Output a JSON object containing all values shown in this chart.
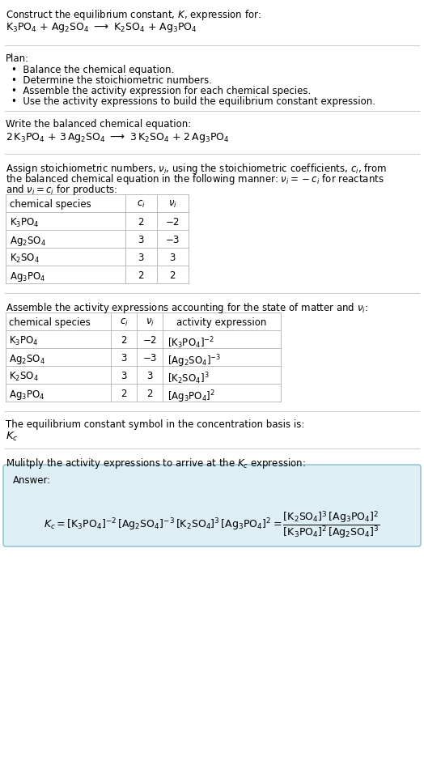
{
  "bg_color": "#ffffff",
  "text_color": "#000000",
  "table_border_color": "#bbbbbb",
  "answer_box_color": "#ddeef5",
  "answer_box_border": "#88bbcc",
  "fs": 8.5,
  "title_line1": "Construct the equilibrium constant, $K$, expression for:",
  "title_line2": "$\\mathrm{K_3PO_4}$ + $\\mathrm{Ag_2SO_4}$ $\\longrightarrow$ $\\mathrm{K_2SO_4}$ + $\\mathrm{Ag_3PO_4}$",
  "plan_header": "Plan:",
  "plan_bullets": [
    "Balance the chemical equation.",
    "Determine the stoichiometric numbers.",
    "Assemble the activity expression for each chemical species.",
    "Use the activity expressions to build the equilibrium constant expression."
  ],
  "balanced_eq_header": "Write the balanced chemical equation:",
  "balanced_eq": "$2\\,\\mathrm{K_3PO_4}$ + $3\\,\\mathrm{Ag_2SO_4}$ $\\longrightarrow$ $3\\,\\mathrm{K_2SO_4}$ + $2\\,\\mathrm{Ag_3PO_4}$",
  "stoich_line1": "Assign stoichiometric numbers, $\\nu_i$, using the stoichiometric coefficients, $c_i$, from",
  "stoich_line2": "the balanced chemical equation in the following manner: $\\nu_i = -c_i$ for reactants",
  "stoich_line3": "and $\\nu_i = c_i$ for products:",
  "table1_headers": [
    "chemical species",
    "$c_i$",
    "$\\nu_i$"
  ],
  "table1_rows": [
    [
      "$\\mathrm{K_3PO_4}$",
      "2",
      "$-2$"
    ],
    [
      "$\\mathrm{Ag_2SO_4}$",
      "3",
      "$-3$"
    ],
    [
      "$\\mathrm{K_2SO_4}$",
      "3",
      "3"
    ],
    [
      "$\\mathrm{Ag_3PO_4}$",
      "2",
      "2"
    ]
  ],
  "activity_intro": "Assemble the activity expressions accounting for the state of matter and $\\nu_i$:",
  "table2_headers": [
    "chemical species",
    "$c_i$",
    "$\\nu_i$",
    "activity expression"
  ],
  "table2_rows": [
    [
      "$\\mathrm{K_3PO_4}$",
      "2",
      "$-2$",
      "$[\\mathrm{K_3PO_4}]^{-2}$"
    ],
    [
      "$\\mathrm{Ag_2SO_4}$",
      "3",
      "$-3$",
      "$[\\mathrm{Ag_2SO_4}]^{-3}$"
    ],
    [
      "$\\mathrm{K_2SO_4}$",
      "3",
      "3",
      "$[\\mathrm{K_2SO_4}]^{3}$"
    ],
    [
      "$\\mathrm{Ag_3PO_4}$",
      "2",
      "2",
      "$[\\mathrm{Ag_3PO_4}]^{2}$"
    ]
  ],
  "kc_symbol_text": "The equilibrium constant symbol in the concentration basis is:",
  "kc_symbol": "$K_c$",
  "multiply_text": "Mulitply the activity expressions to arrive at the $K_c$ expression:",
  "answer_label": "Answer:",
  "kc_expr_left": "$K_c = [\\mathrm{K_3PO_4}]^{-2}\\,[\\mathrm{Ag_2SO_4}]^{-3}\\,[\\mathrm{K_2SO_4}]^{3}\\,[\\mathrm{Ag_3PO_4}]^{2} = \\dfrac{[\\mathrm{K_2SO_4}]^{3}\\,[\\mathrm{Ag_3PO_4}]^{2}}{[\\mathrm{K_3PO_4}]^{2}\\,[\\mathrm{Ag_2SO_4}]^{3}}$"
}
